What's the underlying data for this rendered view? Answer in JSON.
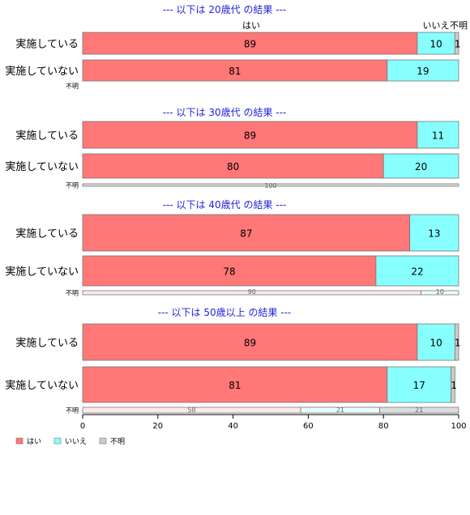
{
  "chart_data": {
    "type": "bar",
    "orientation": "horizontal",
    "stacked": true,
    "xlim": [
      0,
      100
    ],
    "x_ticks": [
      0,
      20,
      40,
      60,
      80,
      100
    ],
    "grid": false,
    "legend_placement": "bottom-left",
    "segment_names": [
      "はい",
      "いいえ",
      "不明"
    ],
    "colors": {
      "はい": "#ff7777",
      "いいえ": "#88ffff",
      "不明": "#cccccc"
    },
    "groups": [
      {
        "title": "--- 以下は 20歳代 の結果 ---",
        "rows": [
          {
            "label": "実施している",
            "values": [
              89,
              10,
              1
            ]
          },
          {
            "label": "実施していない",
            "values": [
              81,
              19,
              0
            ]
          },
          {
            "label": "不明",
            "values": [
              0,
              0,
              0
            ]
          }
        ]
      },
      {
        "title": "--- 以下は 30歳代 の結果 ---",
        "rows": [
          {
            "label": "実施している",
            "values": [
              89,
              11,
              0
            ]
          },
          {
            "label": "実施していない",
            "values": [
              80,
              20,
              0
            ]
          },
          {
            "label": "不明",
            "values": [
              0,
              0,
              100
            ]
          }
        ]
      },
      {
        "title": "--- 以下は 40歳代 の結果 ---",
        "rows": [
          {
            "label": "実施している",
            "values": [
              87,
              13,
              0
            ]
          },
          {
            "label": "実施していない",
            "values": [
              78,
              22,
              0
            ]
          },
          {
            "label": "不明",
            "values": [
              90,
              10,
              0
            ]
          }
        ]
      },
      {
        "title": "--- 以下は 50歳以上 の結果 ---",
        "rows": [
          {
            "label": "実施している",
            "values": [
              89,
              10,
              1
            ]
          },
          {
            "label": "実施していない",
            "values": [
              81,
              17,
              1
            ]
          },
          {
            "label": "不明",
            "values": [
              58,
              21,
              21
            ]
          }
        ]
      }
    ],
    "legend": [
      {
        "name": "はい",
        "color": "#ff7777"
      },
      {
        "name": "いいえ",
        "color": "#88ffff"
      },
      {
        "name": "不明",
        "color": "#cccccc"
      }
    ]
  }
}
